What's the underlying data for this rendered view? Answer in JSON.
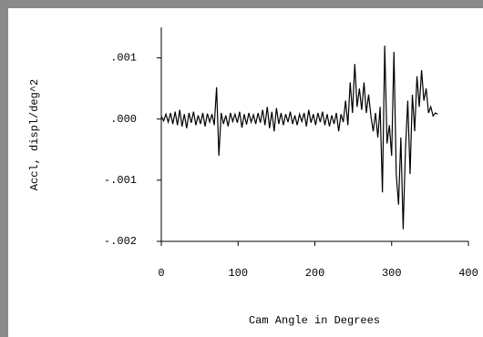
{
  "chart_data": {
    "type": "line",
    "x_label": "Cam Angle in Degrees",
    "y_label": "Accl, displ/deg^2",
    "color": "#000000",
    "xlim": [
      0,
      400
    ],
    "xticks": [
      0,
      100,
      200,
      300,
      400
    ],
    "ylim": [
      -0.002,
      0.0015
    ],
    "yticks": [
      {
        "value": 0.001,
        "label": ".001"
      },
      {
        "value": 0,
        "label": ".000"
      },
      {
        "value": -0.001,
        "label": "-.001"
      },
      {
        "value": -0.002,
        "label": "-.002"
      }
    ],
    "x": [
      0,
      3,
      6,
      9,
      12,
      15,
      18,
      21,
      24,
      27,
      30,
      33,
      36,
      39,
      42,
      45,
      48,
      51,
      54,
      57,
      60,
      63,
      66,
      69,
      72,
      75,
      78,
      81,
      84,
      87,
      90,
      93,
      96,
      99,
      102,
      105,
      108,
      111,
      114,
      117,
      120,
      123,
      126,
      129,
      132,
      135,
      138,
      141,
      144,
      147,
      150,
      153,
      156,
      159,
      162,
      165,
      168,
      171,
      174,
      177,
      180,
      183,
      186,
      189,
      192,
      195,
      198,
      201,
      204,
      207,
      210,
      213,
      216,
      219,
      222,
      225,
      228,
      231,
      234,
      237,
      240,
      243,
      246,
      249,
      252,
      255,
      258,
      261,
      264,
      267,
      270,
      273,
      276,
      279,
      282,
      285,
      288,
      291,
      294,
      297,
      300,
      303,
      306,
      309,
      312,
      315,
      318,
      321,
      324,
      327,
      330,
      333,
      336,
      339,
      342,
      345,
      348,
      351,
      354,
      357,
      360
    ],
    "values": [
      5e-05,
      -3e-05,
      8e-05,
      -5e-05,
      0.0001,
      -8e-05,
      0.00012,
      -0.0001,
      0.00015,
      -0.00012,
      8e-05,
      -0.00015,
      0.0001,
      -6e-05,
      0.00012,
      -0.0001,
      6e-05,
      -8e-05,
      0.0001,
      -0.00012,
      9e-05,
      -5e-05,
      8e-05,
      -0.0001,
      0.00052,
      -0.0006,
      0.0001,
      -8e-05,
      6e-05,
      -0.00012,
      0.0001,
      -4e-05,
      8e-05,
      -6e-05,
      0.00012,
      -0.00014,
      8e-05,
      -9e-05,
      0.0001,
      -5e-05,
      7e-05,
      -8e-05,
      0.0001,
      -6e-05,
      0.00015,
      -0.0001,
      0.0002,
      -0.00015,
      0.00012,
      -0.0002,
      0.00018,
      -8e-05,
      0.0001,
      -0.0001,
      8e-05,
      -5e-05,
      0.00012,
      -8e-05,
      6e-05,
      -0.0001,
      8e-05,
      -4e-05,
      0.0001,
      -0.00012,
      0.00015,
      -6e-05,
      8e-05,
      -0.0001,
      0.0001,
      -5e-05,
      0.00012,
      -0.0001,
      8e-05,
      -0.00012,
      6e-05,
      -8e-05,
      0.0001,
      -0.0002,
      8e-05,
      -5e-05,
      0.0003,
      -0.0001,
      0.0006,
      0.0001,
      0.0009,
      0.0002,
      0.0005,
      0.00015,
      0.0006,
      0.0001,
      0.0004,
      5e-05,
      -0.0002,
      0.0001,
      -0.0003,
      0.0002,
      -0.0012,
      0.0012,
      -0.0004,
      -0.0001,
      -0.0006,
      0.0011,
      -0.0009,
      -0.0014,
      -0.0003,
      -0.0018,
      -0.0005,
      0.0003,
      -0.0009,
      0.0004,
      -0.0002,
      0.0007,
      0.0002,
      0.0008,
      0.0003,
      0.0005,
      0.0001,
      0.0002,
      5e-05,
      0.0001,
      8e-05
    ]
  }
}
